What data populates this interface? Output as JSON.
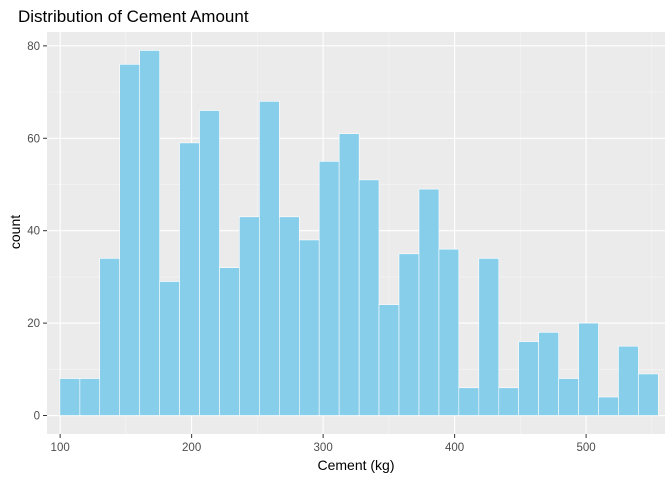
{
  "chart_data": {
    "type": "bar",
    "title": "Distribution of Cement Amount",
    "xlabel": "Cement (kg)",
    "ylabel": "count",
    "xlim": [
      90,
      560
    ],
    "ylim": [
      -4,
      83
    ],
    "x_ticks": [
      100,
      200,
      300,
      400,
      500
    ],
    "y_ticks": [
      0,
      20,
      40,
      60,
      80
    ],
    "grid": true,
    "bin_width": 15.17,
    "bins": [
      {
        "x0": 99.8,
        "x1": 115.0,
        "count": 8
      },
      {
        "x0": 115.0,
        "x1": 130.1,
        "count": 8
      },
      {
        "x0": 130.1,
        "x1": 145.3,
        "count": 34
      },
      {
        "x0": 145.3,
        "x1": 160.5,
        "count": 76
      },
      {
        "x0": 160.5,
        "x1": 175.7,
        "count": 79
      },
      {
        "x0": 175.7,
        "x1": 190.8,
        "count": 29
      },
      {
        "x0": 190.8,
        "x1": 206.0,
        "count": 59
      },
      {
        "x0": 206.0,
        "x1": 221.2,
        "count": 66
      },
      {
        "x0": 221.2,
        "x1": 236.3,
        "count": 32
      },
      {
        "x0": 236.3,
        "x1": 251.5,
        "count": 43
      },
      {
        "x0": 251.5,
        "x1": 266.7,
        "count": 68
      },
      {
        "x0": 266.7,
        "x1": 281.9,
        "count": 43
      },
      {
        "x0": 281.9,
        "x1": 297.0,
        "count": 38
      },
      {
        "x0": 297.0,
        "x1": 312.2,
        "count": 55
      },
      {
        "x0": 312.2,
        "x1": 327.4,
        "count": 61
      },
      {
        "x0": 327.4,
        "x1": 342.5,
        "count": 51
      },
      {
        "x0": 342.5,
        "x1": 357.7,
        "count": 24
      },
      {
        "x0": 357.7,
        "x1": 372.9,
        "count": 35
      },
      {
        "x0": 372.9,
        "x1": 388.1,
        "count": 49
      },
      {
        "x0": 388.1,
        "x1": 403.2,
        "count": 36
      },
      {
        "x0": 403.2,
        "x1": 418.4,
        "count": 6
      },
      {
        "x0": 418.4,
        "x1": 433.6,
        "count": 34
      },
      {
        "x0": 433.6,
        "x1": 448.7,
        "count": 6
      },
      {
        "x0": 448.7,
        "x1": 463.9,
        "count": 16
      },
      {
        "x0": 463.9,
        "x1": 479.1,
        "count": 18
      },
      {
        "x0": 479.1,
        "x1": 494.3,
        "count": 8
      },
      {
        "x0": 494.3,
        "x1": 509.4,
        "count": 20
      },
      {
        "x0": 509.4,
        "x1": 524.6,
        "count": 4
      },
      {
        "x0": 524.6,
        "x1": 539.8,
        "count": 15
      },
      {
        "x0": 539.8,
        "x1": 554.9,
        "count": 9
      }
    ],
    "colors": {
      "bar_fill": "#87ceeb",
      "bar_outline": "#ffffff",
      "panel_background": "#ebebeb",
      "grid_major": "#ffffff",
      "grid_minor": "#f5f5f5",
      "tick_text": "#4d4d4d",
      "tick_mark": "#333333"
    }
  }
}
